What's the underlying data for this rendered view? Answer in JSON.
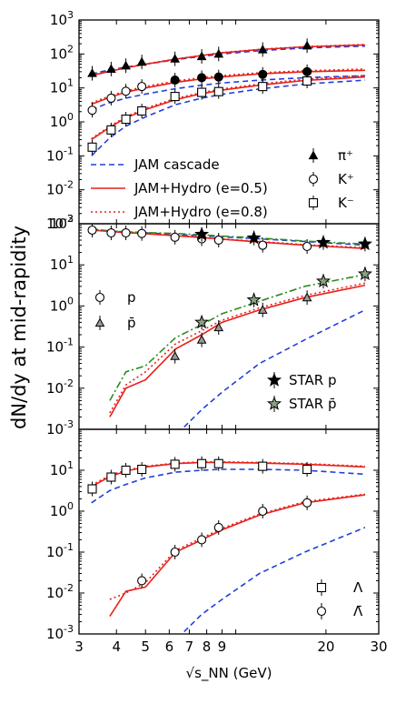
{
  "chart_data": [
    {
      "type": "line",
      "panel": "top",
      "xlabel": "√s_NN (GeV)",
      "ylabel": "dN/dy at mid-rapidity",
      "xscale": "log",
      "yscale": "log",
      "xlim": [
        3,
        30
      ],
      "ylim": [
        0.001,
        1000
      ],
      "x_ticks": [
        "3",
        "4",
        "5",
        "6",
        "7",
        "8",
        "9",
        "20",
        "30"
      ],
      "x_ticks_plain": [
        "3",
        "4",
        "5",
        "6",
        "7",
        "8",
        "9",
        "20",
        "30"
      ],
      "y_ticks": [
        {
          "v": 0.001,
          "e": "-3"
        },
        {
          "v": 0.01,
          "e": "-2"
        },
        {
          "v": 0.1,
          "e": "-1"
        },
        {
          "v": 1,
          "e": "0"
        },
        {
          "v": 10,
          "e": "1"
        },
        {
          "v": 100,
          "e": "2"
        },
        {
          "v": 1000,
          "e": "3"
        }
      ],
      "legend_models": [
        {
          "label": "JAM cascade",
          "color": "#1f3fdc",
          "dash": "6,4"
        },
        {
          "label": "JAM+Hydro (e=0.5)",
          "color": "#e8201a",
          "dash": ""
        },
        {
          "label": "JAM+Hydro (e=0.8)",
          "color": "#e8201a",
          "dash": "2,3"
        }
      ],
      "legend_markers": [
        {
          "label": "π⁺",
          "marker": "triangle"
        },
        {
          "label": "K⁺",
          "marker": "circle"
        },
        {
          "label": "K⁻",
          "marker": "square"
        }
      ],
      "series": [
        {
          "model": "cascade",
          "color": "#1f3fdc",
          "dash": "6,4",
          "x": [
            3.3,
            3.8,
            4.3,
            5,
            6.3,
            7.7,
            9,
            12,
            17,
            27
          ],
          "y": [
            26,
            34,
            41,
            50,
            68,
            85,
            100,
            125,
            150,
            170
          ]
        },
        {
          "model": "hydro0.5",
          "color": "#e8201a",
          "dash": "",
          "x": [
            3.3,
            3.8,
            4.3,
            5,
            6.3,
            7.7,
            9,
            12,
            17,
            27
          ],
          "y": [
            23,
            31,
            39,
            50,
            70,
            90,
            108,
            135,
            162,
            185
          ]
        },
        {
          "model": "hydro0.8",
          "color": "#e8201a",
          "dash": "2,3",
          "x": [
            3.3,
            3.8,
            4.3,
            5,
            6.3,
            7.7,
            9,
            12,
            17,
            27
          ],
          "y": [
            24,
            32,
            40,
            51,
            71,
            91,
            110,
            137,
            165,
            190
          ]
        },
        {
          "model": "cascade",
          "color": "#1f3fdc",
          "dash": "6,4",
          "x": [
            3.3,
            3.8,
            4.3,
            5,
            6.3,
            7.7,
            9,
            12,
            17,
            27
          ],
          "y": [
            2.3,
            3.7,
            5.0,
            6.6,
            9.5,
            12,
            14,
            17,
            20,
            23
          ]
        },
        {
          "model": "hydro0.5",
          "color": "#e8201a",
          "dash": "",
          "x": [
            3.3,
            3.8,
            4.3,
            5,
            6.3,
            7.7,
            9,
            12,
            17,
            27
          ],
          "y": [
            3.3,
            5.3,
            7.5,
            10,
            14.5,
            18.5,
            21,
            26,
            30,
            33
          ]
        },
        {
          "model": "hydro0.8",
          "color": "#e8201a",
          "dash": "2,3",
          "x": [
            3.3,
            3.8,
            4.3,
            5,
            6.3,
            7.7,
            9,
            12,
            17,
            27
          ],
          "y": [
            3.6,
            5.8,
            8.2,
            11,
            16,
            20,
            23,
            28,
            32,
            36
          ]
        },
        {
          "model": "cascade",
          "color": "#1f3fdc",
          "dash": "6,4",
          "x": [
            3.3,
            3.8,
            4.3,
            5,
            6.3,
            7.7,
            9,
            12,
            17,
            27
          ],
          "y": [
            0.1,
            0.34,
            0.75,
            1.4,
            3.2,
            5,
            6.5,
            9.3,
            13,
            17
          ]
        },
        {
          "model": "hydro0.5",
          "color": "#e8201a",
          "dash": "",
          "x": [
            3.3,
            3.8,
            4.3,
            5,
            6.3,
            7.7,
            9,
            12,
            17,
            27
          ],
          "y": [
            0.3,
            0.7,
            1.3,
            2.3,
            4.5,
            6.8,
            8.6,
            12,
            16.5,
            21
          ]
        },
        {
          "model": "hydro0.8",
          "color": "#e8201a",
          "dash": "2,3",
          "x": [
            3.3,
            3.8,
            4.3,
            5,
            6.3,
            7.7,
            9,
            12,
            17,
            27
          ],
          "y": [
            0.32,
            0.75,
            1.4,
            2.5,
            4.9,
            7.3,
            9.3,
            13,
            18,
            23
          ]
        }
      ],
      "points": [
        {
          "name": "π⁺",
          "marker": "triangle",
          "fill": "#000",
          "x": [
            3.32,
            3.84,
            4.3,
            4.86,
            6.27,
            7.7,
            8.77,
            12.3,
            17.3
          ],
          "y": [
            27,
            36,
            45,
            58,
            72,
            85,
            100,
            135,
            175
          ]
        },
        {
          "name": "K⁺",
          "marker": "circle",
          "fill": "none",
          "x": [
            3.32,
            3.84,
            4.3,
            4.86
          ],
          "y": [
            2.2,
            5.0,
            8.0,
            11
          ]
        },
        {
          "name": "K⁺",
          "marker": "circle",
          "fill": "#000",
          "x": [
            6.27,
            7.7,
            8.77,
            12.3,
            17.3
          ],
          "y": [
            17,
            20,
            21,
            25,
            30
          ]
        },
        {
          "name": "K⁻",
          "marker": "square",
          "fill": "none",
          "x": [
            3.32,
            3.84,
            4.3,
            4.86,
            6.27,
            7.7,
            8.77,
            12.3,
            17.3
          ],
          "y": [
            0.18,
            0.58,
            1.2,
            2.1,
            5.6,
            7.4,
            7.8,
            11,
            16
          ]
        }
      ]
    },
    {
      "type": "line",
      "panel": "middle",
      "xscale": "log",
      "yscale": "log",
      "xlim": [
        3,
        30
      ],
      "ylim": [
        0.001,
        100
      ],
      "y_ticks": [
        {
          "v": 0.001,
          "e": "-3"
        },
        {
          "v": 0.01,
          "e": "-2"
        },
        {
          "v": 0.1,
          "e": "-1"
        },
        {
          "v": 1,
          "e": "0"
        },
        {
          "v": 10,
          "e": "1"
        },
        {
          "v": 100,
          "e": "2"
        }
      ],
      "legend_markers": [
        {
          "label": "p",
          "marker": "circle"
        },
        {
          "label": "p̄",
          "marker": "triangle"
        },
        {
          "label": "STAR p",
          "marker": "star-filled"
        },
        {
          "label": "STAR p̄",
          "marker": "star-open"
        }
      ],
      "series": [
        {
          "model": "cascade",
          "color": "#1f3fdc",
          "dash": "6,4",
          "x": [
            3.3,
            3.8,
            4.3,
            5,
            6.3,
            7.7,
            9,
            12,
            17,
            27
          ],
          "y": [
            73,
            67,
            63,
            60,
            55,
            51,
            48,
            43,
            37,
            30
          ]
        },
        {
          "model": "hydro0.5",
          "color": "#e8201a",
          "dash": "",
          "x": [
            3.3,
            3.8,
            4.3,
            5,
            6.3,
            7.7,
            9,
            12,
            17,
            27
          ],
          "y": [
            70,
            65,
            61,
            57,
            51,
            46,
            42,
            36,
            30,
            25
          ]
        },
        {
          "model": "hydro0.8",
          "color": "#e8201a",
          "dash": "2,3",
          "x": [
            3.3,
            3.8,
            4.3,
            5,
            6.3,
            7.7,
            9,
            12,
            17,
            27
          ],
          "y": [
            72,
            66,
            62,
            58,
            52,
            47,
            43,
            37,
            31,
            26
          ]
        },
        {
          "model": "cascade_green",
          "color": "#2e8b22",
          "dash": "8,3,2,3",
          "x": [
            3.3,
            3.8,
            4.3,
            5,
            6.3,
            7.7,
            9,
            12,
            17,
            27
          ],
          "y": [
            74,
            68,
            64,
            61,
            58,
            54,
            50,
            45,
            38,
            32
          ]
        },
        {
          "model": "cascade",
          "color": "#1f3fdc",
          "dash": "6,4",
          "x": [
            6.4,
            7.7,
            9,
            12,
            17,
            27
          ],
          "y": [
            0.0008,
            0.003,
            0.008,
            0.04,
            0.15,
            0.8
          ]
        },
        {
          "model": "hydro0.5",
          "color": "#e8201a",
          "dash": "",
          "x": [
            3.8,
            4.3,
            5,
            6.3,
            7.7,
            9,
            12,
            17,
            27
          ],
          "y": [
            0.002,
            0.01,
            0.016,
            0.09,
            0.2,
            0.4,
            0.8,
            1.6,
            3.2
          ]
        },
        {
          "model": "hydro0.8",
          "color": "#e8201a",
          "dash": "2,3",
          "x": [
            3.8,
            4.3,
            5,
            6.3,
            7.7,
            9,
            12,
            17,
            27
          ],
          "y": [
            0.0025,
            0.012,
            0.025,
            0.12,
            0.25,
            0.45,
            0.9,
            1.8,
            3.6
          ]
        },
        {
          "model": "cascade_green",
          "color": "#2e8b22",
          "dash": "8,3,2,3",
          "x": [
            3.8,
            4.3,
            5,
            6.3,
            7.7,
            9,
            12,
            17,
            27
          ],
          "y": [
            0.005,
            0.025,
            0.035,
            0.17,
            0.35,
            0.65,
            1.3,
            3.0,
            5.8
          ]
        }
      ],
      "points": [
        {
          "name": "p",
          "marker": "circle",
          "fill": "none",
          "x": [
            3.32,
            3.84,
            4.3,
            4.86,
            6.27,
            7.7,
            8.77,
            12.3,
            17.3
          ],
          "y": [
            70,
            60,
            60,
            58,
            47,
            43,
            40,
            30,
            28
          ]
        },
        {
          "name": "p̄",
          "marker": "triangle",
          "fill": "#999",
          "x": [
            6.27,
            7.7,
            8.77,
            12.3,
            17.3
          ],
          "y": [
            0.06,
            0.15,
            0.3,
            0.8,
            1.6
          ]
        },
        {
          "name": "STAR p",
          "marker": "star-filled",
          "fill": "#000",
          "x": [
            7.7,
            11.5,
            19.6,
            27
          ],
          "y": [
            55,
            45,
            35,
            32
          ]
        },
        {
          "name": "STAR p̄",
          "marker": "star-open",
          "fill": "#8aa080",
          "x": [
            7.7,
            11.5,
            19.6,
            27
          ],
          "y": [
            0.4,
            1.4,
            4.0,
            6.0
          ]
        }
      ]
    },
    {
      "type": "line",
      "panel": "bottom",
      "xscale": "log",
      "yscale": "log",
      "xlim": [
        3,
        30
      ],
      "ylim": [
        0.001,
        100
      ],
      "y_ticks": [
        {
          "v": 0.001,
          "e": "-3"
        },
        {
          "v": 0.01,
          "e": "-2"
        },
        {
          "v": 0.1,
          "e": "-1"
        },
        {
          "v": 1,
          "e": "0"
        },
        {
          "v": 10,
          "e": "1"
        }
      ],
      "legend_markers": [
        {
          "label": "Λ",
          "marker": "square"
        },
        {
          "label": "Λ̄",
          "marker": "circle"
        }
      ],
      "series": [
        {
          "model": "cascade",
          "color": "#1f3fdc",
          "dash": "6,4",
          "x": [
            3.3,
            3.8,
            4.3,
            5,
            6.3,
            7.7,
            9,
            12,
            17,
            27
          ],
          "y": [
            1.6,
            3.2,
            4.5,
            6.5,
            9,
            10,
            10.5,
            10.5,
            10,
            8
          ]
        },
        {
          "model": "hydro0.5",
          "color": "#e8201a",
          "dash": "",
          "x": [
            3.3,
            3.8,
            4.3,
            5,
            6.3,
            7.7,
            9,
            12,
            17,
            27
          ],
          "y": [
            4,
            7,
            9.5,
            12,
            14.5,
            15.5,
            15.5,
            15,
            14,
            12
          ]
        },
        {
          "model": "hydro0.8",
          "color": "#e8201a",
          "dash": "2,3",
          "x": [
            3.3,
            3.8,
            4.3,
            5,
            6.3,
            7.7,
            9,
            12,
            17,
            27
          ],
          "y": [
            4.3,
            7.5,
            10,
            12.5,
            15,
            16,
            16,
            15.5,
            14.5,
            12.5
          ]
        },
        {
          "model": "cascade",
          "color": "#1f3fdc",
          "dash": "6,4",
          "x": [
            6.4,
            7.7,
            9,
            12,
            17,
            27
          ],
          "y": [
            0.0008,
            0.003,
            0.007,
            0.03,
            0.1,
            0.4
          ]
        },
        {
          "model": "hydro0.5",
          "color": "#e8201a",
          "dash": "",
          "x": [
            3.8,
            4.3,
            5,
            6.3,
            7.7,
            9,
            12,
            17,
            27
          ],
          "y": [
            0.0027,
            0.011,
            0.014,
            0.1,
            0.2,
            0.35,
            0.8,
            1.6,
            2.5
          ]
        },
        {
          "model": "hydro0.8",
          "color": "#e8201a",
          "dash": "2,3",
          "x": [
            3.8,
            4.3,
            5,
            6.3,
            7.7,
            9,
            12,
            17,
            27
          ],
          "y": [
            0.007,
            0.01,
            0.018,
            0.11,
            0.22,
            0.38,
            0.85,
            1.7,
            2.6
          ]
        }
      ],
      "points": [
        {
          "name": "Λ",
          "marker": "square",
          "fill": "none",
          "x": [
            3.32,
            3.84,
            4.3,
            4.86,
            6.27,
            7.7,
            8.77,
            12.3,
            17.3
          ],
          "y": [
            3.5,
            6.8,
            10,
            10.5,
            14,
            14.5,
            14.5,
            12.5,
            10.5
          ]
        },
        {
          "name": "Λ̄",
          "marker": "circle",
          "fill": "none",
          "x": [
            4.86,
            6.27,
            7.7,
            8.77,
            12.3,
            17.3
          ],
          "y": [
            0.02,
            0.1,
            0.2,
            0.4,
            1.0,
            1.6
          ]
        }
      ]
    }
  ]
}
